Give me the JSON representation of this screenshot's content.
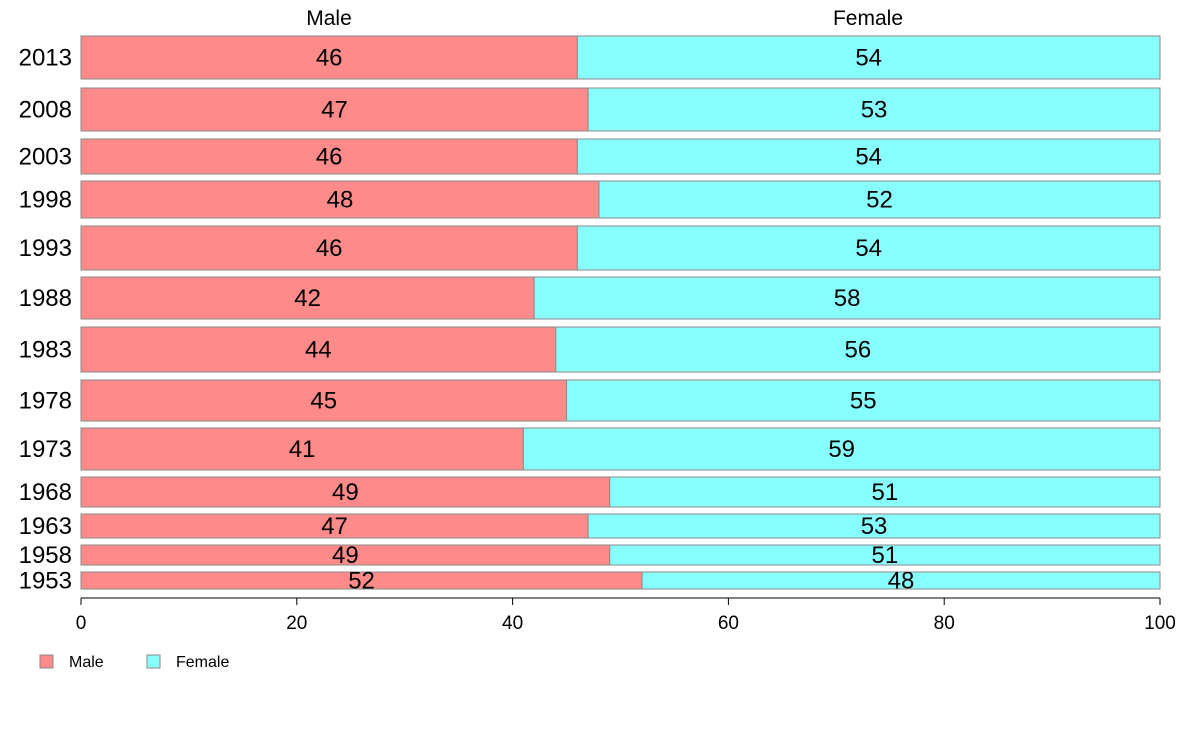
{
  "chart_data": {
    "type": "bar",
    "orientation": "horizontal",
    "stacked": true,
    "categories": [
      "2013",
      "2008",
      "2003",
      "1998",
      "1993",
      "1988",
      "1983",
      "1978",
      "1973",
      "1968",
      "1963",
      "1958",
      "1953"
    ],
    "series": [
      {
        "name": "Male",
        "color": "#ff8a8a",
        "values": [
          46,
          47,
          46,
          48,
          46,
          42,
          44,
          45,
          41,
          49,
          47,
          49,
          52
        ]
      },
      {
        "name": "Female",
        "color": "#88ffff",
        "values": [
          54,
          53,
          54,
          52,
          54,
          58,
          56,
          55,
          59,
          51,
          53,
          51,
          48
        ]
      }
    ],
    "xlim": [
      0,
      100
    ],
    "x_ticks": [
      "0",
      "20",
      "40",
      "60",
      "80",
      "100"
    ],
    "grid": false,
    "legend_position": "bottom-left",
    "column_headers": [
      "Male",
      "Female"
    ]
  }
}
